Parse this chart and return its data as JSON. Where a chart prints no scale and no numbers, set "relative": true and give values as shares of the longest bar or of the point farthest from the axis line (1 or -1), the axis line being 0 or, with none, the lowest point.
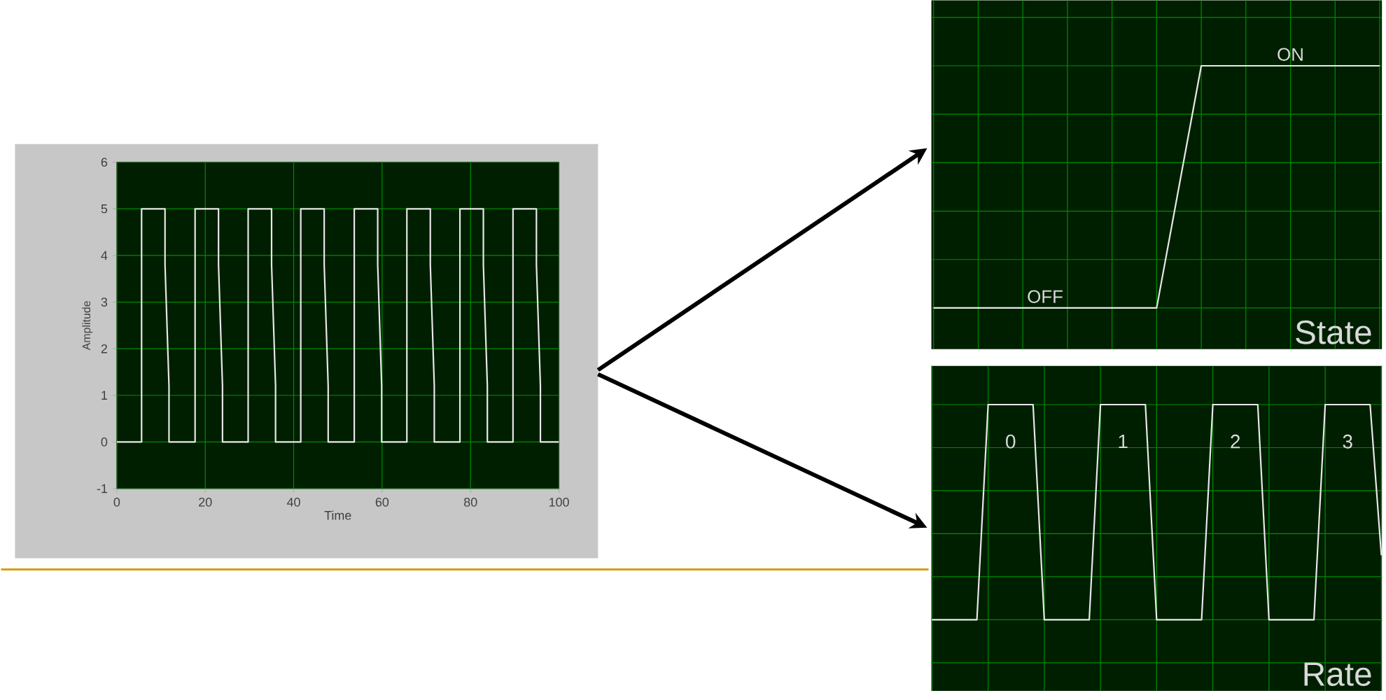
{
  "chart_data": [
    {
      "type": "line",
      "xlabel": "Time",
      "ylabel": "Amplitude",
      "xlim": [
        0,
        100
      ],
      "ylim": [
        -1,
        6
      ],
      "xticks": [
        0,
        20,
        40,
        60,
        80,
        100
      ],
      "yticks": [
        -1,
        0,
        1,
        2,
        3,
        4,
        5,
        6
      ],
      "grid": true,
      "series": [
        {
          "color": "#e8e8e8",
          "x": [
            0,
            5.6,
            5.6,
            10.9,
            10.9,
            11.8,
            11.8,
            17.7,
            17.7,
            23.0,
            23.0,
            23.9,
            23.9,
            29.7,
            29.7,
            35.0,
            35.0,
            35.9,
            35.9,
            41.6,
            41.6,
            46.9,
            46.9,
            47.8,
            47.8,
            53.7,
            53.7,
            59.0,
            59.0,
            59.9,
            59.9,
            65.6,
            65.6,
            70.9,
            70.9,
            71.8,
            71.8,
            77.6,
            77.6,
            82.9,
            82.9,
            83.8,
            83.8,
            89.6,
            89.6,
            94.9,
            94.9,
            95.8,
            95.8,
            100
          ],
          "values": [
            0,
            0,
            5,
            5,
            3.8,
            1.2,
            0,
            0,
            5,
            5,
            3.8,
            1.2,
            0,
            0,
            5,
            5,
            3.8,
            1.2,
            0,
            0,
            5,
            5,
            3.8,
            1.2,
            0,
            0,
            5,
            5,
            3.8,
            1.2,
            0,
            0,
            5,
            5,
            3.8,
            1.2,
            0,
            0,
            5,
            5,
            3.8,
            1.2,
            0,
            0,
            5,
            5,
            3.8,
            1.2,
            0,
            0
          ]
        }
      ]
    },
    {
      "type": "line",
      "relative": true,
      "grid": true,
      "annotations": [
        "OFF",
        "ON",
        "State"
      ],
      "categories": [
        null,
        null,
        null,
        null,
        null,
        null,
        null,
        null,
        null,
        null,
        null
      ],
      "series": [
        {
          "color": "#e8e8e8",
          "values": [
            0,
            0,
            0,
            0,
            0,
            0,
            1,
            1,
            1,
            1,
            1
          ]
        }
      ]
    },
    {
      "type": "line",
      "relative": true,
      "grid": true,
      "annotations": [
        "0",
        "1",
        "2",
        "3",
        "Rate"
      ],
      "categories": [
        null,
        null,
        null,
        null,
        null,
        null,
        null,
        null,
        null,
        null,
        null,
        null,
        null,
        null,
        null,
        null,
        null,
        null,
        null,
        null,
        null,
        null,
        null,
        null,
        null,
        null,
        null,
        null,
        null,
        null,
        null,
        null,
        null,
        null,
        null,
        null,
        null,
        null,
        null,
        null,
        null
      ],
      "series": [
        {
          "color": "#e8e8e8",
          "values": [
            0,
            0,
            0,
            0,
            0,
            1,
            1,
            1,
            1,
            1,
            0,
            0,
            0,
            0,
            0,
            1,
            1,
            1,
            1,
            1,
            0,
            0,
            0,
            0,
            0,
            1,
            1,
            1,
            1,
            1,
            0,
            0,
            0,
            0,
            0,
            1,
            1,
            1,
            1,
            1,
            0.3
          ]
        }
      ]
    }
  ]
}
